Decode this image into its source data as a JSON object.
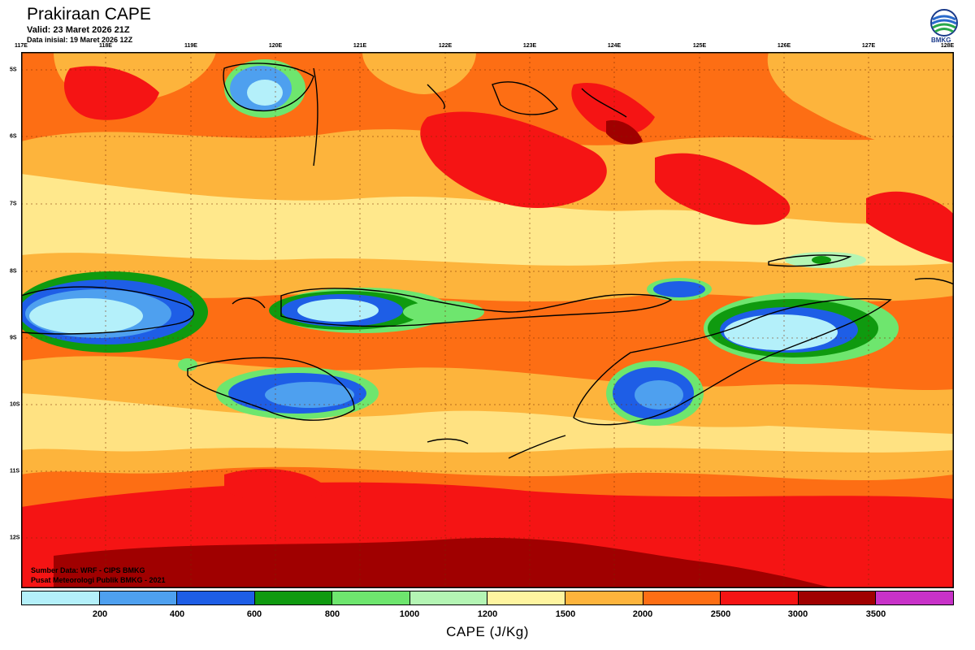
{
  "header": {
    "title": "Prakiraan CAPE",
    "valid": "Valid: 23 Maret 2026 21Z",
    "init": "Data inisial: 19 Maret 2026 12Z"
  },
  "logo": {
    "text": "BMKG",
    "icon": "bmkg-logo-icon"
  },
  "map": {
    "lon_labels": [
      "117E",
      "118E",
      "119E",
      "120E",
      "121E",
      "122E",
      "123E",
      "124E",
      "125E",
      "126E",
      "127E",
      "128E"
    ],
    "lat_labels": [
      "5S",
      "6S",
      "7S",
      "8S",
      "9S",
      "10S",
      "11S",
      "12S"
    ],
    "credit_source": "Sumber Data: WRF - CIPS BMKG",
    "credit_org": "Pusat Meteorologi Publik BMKG - 2021"
  },
  "colorbar": {
    "title": "CAPE (J/Kg)",
    "labels": [
      "200",
      "400",
      "600",
      "800",
      "1000",
      "1200",
      "1500",
      "2000",
      "2500",
      "3000",
      "3500"
    ],
    "colors": [
      "#b4f0fa",
      "#4ea0ef",
      "#1e5ee6",
      "#0f9a0f",
      "#6ee66e",
      "#b4f5b4",
      "#fff5a0",
      "#fdb43c",
      "#fd6e14",
      "#f51414",
      "#a00000",
      "#c832c8"
    ]
  }
}
